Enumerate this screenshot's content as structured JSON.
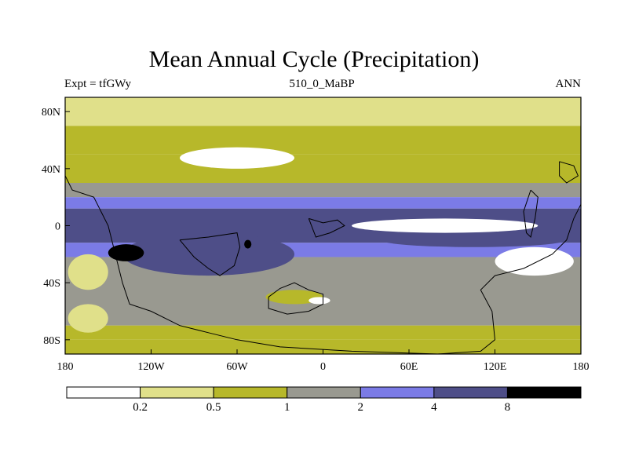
{
  "title": "Mean Annual Cycle (Precipitation)",
  "subtitle_left": "Expt = tfGWy",
  "subtitle_center": "510_0_MaBP",
  "subtitle_right": "ANN",
  "chart_data": {
    "type": "heatmap",
    "title": "Mean Annual Cycle (Precipitation)",
    "xlim": [
      -180,
      180
    ],
    "ylim": [
      -90,
      90
    ],
    "x_ticks": [
      {
        "value": -180,
        "label": "180"
      },
      {
        "value": -120,
        "label": "120W"
      },
      {
        "value": -60,
        "label": "60W"
      },
      {
        "value": 0,
        "label": "0"
      },
      {
        "value": 60,
        "label": "60E"
      },
      {
        "value": 120,
        "label": "120E"
      },
      {
        "value": 180,
        "label": "180"
      }
    ],
    "y_ticks": [
      {
        "value": 80,
        "label": "80N"
      },
      {
        "value": 40,
        "label": "40N"
      },
      {
        "value": 0,
        "label": "0"
      },
      {
        "value": -40,
        "label": "40S"
      },
      {
        "value": -80,
        "label": "80S"
      }
    ],
    "levels": [
      0.2,
      0.5,
      1,
      2,
      4,
      8
    ],
    "level_labels": [
      "0.2",
      "0.5",
      "1",
      "2",
      "4",
      "8"
    ],
    "colors": [
      "#ffffff",
      "#e0e08a",
      "#b7b82a",
      "#999990",
      "#7b7be6",
      "#4e4e88",
      "#000000"
    ],
    "zonal_bands": [
      {
        "lat": [
          70,
          90
        ],
        "level": 1
      },
      {
        "lat": [
          50,
          70
        ],
        "level": 2
      },
      {
        "lat": [
          30,
          50
        ],
        "level": 2
      },
      {
        "lat": [
          20,
          30
        ],
        "level": 3
      },
      {
        "lat": [
          12,
          20
        ],
        "level": 4
      },
      {
        "lat": [
          -12,
          12
        ],
        "level": 5
      },
      {
        "lat": [
          -22,
          -12
        ],
        "level": 4
      },
      {
        "lat": [
          -30,
          -22
        ],
        "level": 3
      },
      {
        "lat": [
          -70,
          -30
        ],
        "level": 3
      },
      {
        "lat": [
          -80,
          -70
        ],
        "level": 2
      },
      {
        "lat": [
          -90,
          -80
        ],
        "level": 2
      }
    ],
    "patches": [
      {
        "lon": [
          -140,
          -20
        ],
        "lat": [
          -35,
          -5
        ],
        "level": 5
      },
      {
        "lon": [
          40,
          170
        ],
        "lat": [
          -15,
          -5
        ],
        "level": 5
      },
      {
        "lon": [
          20,
          150
        ],
        "lat": [
          -5,
          5
        ],
        "level": 0
      },
      {
        "lon": [
          120,
          175
        ],
        "lat": [
          -35,
          -15
        ],
        "level": 0
      },
      {
        "lon": [
          -100,
          -20
        ],
        "lat": [
          40,
          55
        ],
        "level": 0
      },
      {
        "lon": [
          -40,
          0
        ],
        "lat": [
          -55,
          -45
        ],
        "level": 2
      },
      {
        "lon": [
          -10,
          5
        ],
        "lat": [
          -55,
          -50
        ],
        "level": 0
      },
      {
        "lon": [
          -178,
          -150
        ],
        "lat": [
          -45,
          -20
        ],
        "level": 1
      },
      {
        "lon": [
          -178,
          -150
        ],
        "lat": [
          -75,
          -55
        ],
        "level": 1
      },
      {
        "lon": [
          -150,
          -125
        ],
        "lat": [
          -25,
          -13
        ],
        "level": 6
      },
      {
        "lon": [
          -55,
          -50
        ],
        "lat": [
          -16,
          -10
        ],
        "level": 6
      }
    ],
    "land_outlines": [
      {
        "name": "west_pacific_coast",
        "points": [
          [
            -180,
            35
          ],
          [
            -175,
            25
          ],
          [
            -160,
            20
          ],
          [
            -150,
            0
          ],
          [
            -145,
            -20
          ],
          [
            -140,
            -40
          ],
          [
            -135,
            -55
          ],
          [
            -120,
            -60
          ],
          [
            -100,
            -70
          ],
          [
            -80,
            -75
          ],
          [
            -60,
            -80
          ],
          [
            -30,
            -85
          ],
          [
            20,
            -88
          ],
          [
            80,
            -90
          ],
          [
            110,
            -88
          ],
          [
            120,
            -80
          ],
          [
            118,
            -60
          ],
          [
            110,
            -45
          ],
          [
            120,
            -35
          ],
          [
            140,
            -30
          ],
          [
            160,
            -20
          ],
          [
            170,
            -10
          ],
          [
            175,
            5
          ],
          [
            180,
            15
          ]
        ]
      },
      {
        "name": "south_atlantic_island",
        "points": [
          [
            -38,
            -50
          ],
          [
            -30,
            -44
          ],
          [
            -20,
            -40
          ],
          [
            -10,
            -45
          ],
          [
            0,
            -48
          ],
          [
            0,
            -55
          ],
          [
            -10,
            -60
          ],
          [
            -25,
            -62
          ],
          [
            -38,
            -58
          ],
          [
            -38,
            -50
          ]
        ]
      },
      {
        "name": "tropical_block",
        "points": [
          [
            -100,
            -10
          ],
          [
            -80,
            -8
          ],
          [
            -60,
            -5
          ],
          [
            -58,
            -15
          ],
          [
            -62,
            -28
          ],
          [
            -72,
            -35
          ],
          [
            -80,
            -30
          ],
          [
            -90,
            -22
          ],
          [
            -100,
            -10
          ]
        ]
      },
      {
        "name": "equatorial_island",
        "points": [
          [
            -10,
            5
          ],
          [
            0,
            2
          ],
          [
            10,
            4
          ],
          [
            15,
            0
          ],
          [
            5,
            -5
          ],
          [
            -5,
            -8
          ],
          [
            -10,
            5
          ]
        ]
      },
      {
        "name": "east_ridge",
        "points": [
          [
            145,
            25
          ],
          [
            150,
            20
          ],
          [
            148,
            5
          ],
          [
            145,
            -8
          ],
          [
            142,
            -5
          ],
          [
            140,
            10
          ],
          [
            145,
            25
          ]
        ]
      },
      {
        "name": "northeast_block",
        "points": [
          [
            165,
            45
          ],
          [
            175,
            42
          ],
          [
            178,
            35
          ],
          [
            170,
            30
          ],
          [
            165,
            35
          ],
          [
            165,
            45
          ]
        ]
      }
    ]
  }
}
